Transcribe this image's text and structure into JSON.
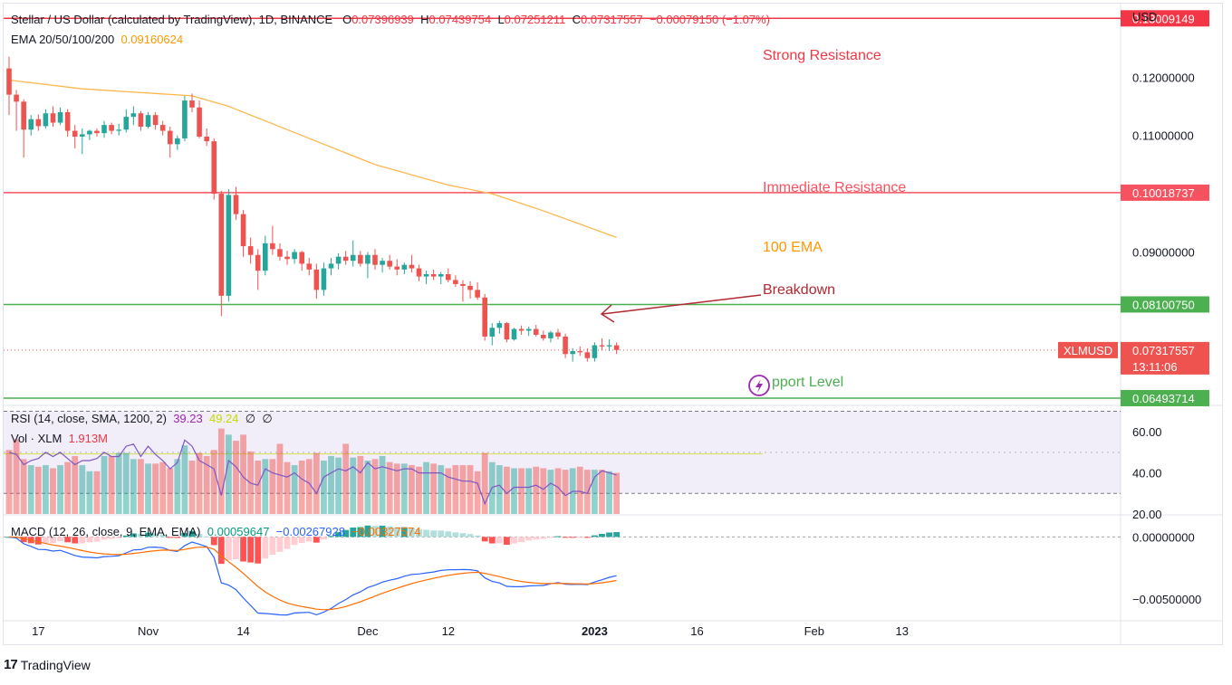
{
  "header": {
    "symbol": "Stellar / US Dollar (calculated by TradingView), 1D, BINANCE",
    "o_label": "O",
    "o_value": "0.07396939",
    "h_label": "H",
    "h_value": "0.07439754",
    "l_label": "L",
    "l_value": "0.07251211",
    "c_label": "C",
    "c_value": "0.07317557",
    "change": "−0.00079150 (−1.07%)",
    "ema_label": "EMA 20/50/100/200",
    "ema_value": "0.09160624"
  },
  "rsi_header": {
    "label": "RSI (14, close, SMA, 1200, 2)",
    "value": "39.23",
    "ma_value": "49.24",
    "extra1": "∅",
    "extra2": "∅"
  },
  "vol_header": {
    "label": "Vol · XLM",
    "value": "1.913M"
  },
  "macd_header": {
    "label": "MACD (12, 26, close, 9, EMA, EMA)",
    "hist": "0.00059647",
    "macd": "−0.00267928",
    "signal": "−0.00327574"
  },
  "currency": "USD",
  "footer": {
    "logo": "17",
    "brand": "TradingView"
  },
  "colors": {
    "up": "#26a69a",
    "down": "#ef5350",
    "ema": "#ffb74d",
    "strong": "#f23645",
    "immediate": "#f7525f",
    "support": "#4caf50",
    "breakdown": "#b22833",
    "rsi": "#7e57c2",
    "macd": "#2962ff",
    "signal": "#ff6d00"
  },
  "annotations": {
    "strong_resistance": "Strong Resistance",
    "immediate_resistance": "Immediate Resistance",
    "ema100": "100 EMA",
    "breakdown": "Breakdown",
    "support": "pport Level"
  },
  "levels": {
    "strong": {
      "value": 0.13009149,
      "label": "0.13009149"
    },
    "immediate": {
      "value": 0.10018737,
      "label": "0.10018737"
    },
    "breakdown": {
      "value": 0.0810075,
      "label": "0.08100750"
    },
    "support": {
      "value": 0.06493714,
      "label": "0.06493714"
    },
    "last": {
      "value": 0.07317557,
      "label": "0.07317557",
      "symbol": "XLMUSD",
      "countdown": "13:11:06"
    }
  },
  "chart_data": {
    "type": "candlestick",
    "price_axis": {
      "min": 0.064,
      "max": 0.132,
      "ticks": [
        0.12,
        0.11,
        0.09
      ],
      "tick_labels": [
        "0.12000000",
        "0.11000000",
        "0.09000000"
      ]
    },
    "rsi_axis": {
      "min": 20,
      "max": 72,
      "ticks": [
        60,
        40,
        20
      ],
      "tick_labels": [
        "60.00",
        "40.00",
        "20.00"
      ],
      "upper_band": 70,
      "lower_band": 30,
      "mid": 50
    },
    "macd_axis": {
      "min": -0.0066,
      "max": 0.0017,
      "ticks": [
        0,
        -0.005
      ],
      "tick_labels": [
        "0.00000000",
        "−0.00500000"
      ]
    },
    "x_labels": [
      {
        "label": "17",
        "day": 4
      },
      {
        "label": "Nov",
        "day": 19
      },
      {
        "label": "14",
        "day": 32
      },
      {
        "label": "Dec",
        "day": 49
      },
      {
        "label": "12",
        "day": 60
      },
      {
        "label": "2023",
        "day": 80,
        "bold": true
      },
      {
        "label": "16",
        "day": 94
      },
      {
        "label": "Feb",
        "day": 110
      },
      {
        "label": "13",
        "day": 122
      }
    ],
    "day_count": 84,
    "ohlc": [
      [
        0.1215,
        0.1235,
        0.1135,
        0.117
      ],
      [
        0.117,
        0.1178,
        0.1108,
        0.1158
      ],
      [
        0.1158,
        0.1162,
        0.1062,
        0.111
      ],
      [
        0.111,
        0.1135,
        0.11,
        0.1128
      ],
      [
        0.1128,
        0.1136,
        0.1108,
        0.1116
      ],
      [
        0.1116,
        0.1145,
        0.1112,
        0.1138
      ],
      [
        0.1138,
        0.115,
        0.1115,
        0.1122
      ],
      [
        0.1122,
        0.1148,
        0.1118,
        0.114
      ],
      [
        0.114,
        0.1145,
        0.1098,
        0.1108
      ],
      [
        0.1108,
        0.1118,
        0.1078,
        0.1098
      ],
      [
        0.1098,
        0.1112,
        0.1068,
        0.1102
      ],
      [
        0.1102,
        0.111,
        0.1092,
        0.1108
      ],
      [
        0.1108,
        0.1112,
        0.1098,
        0.1104
      ],
      [
        0.1104,
        0.1125,
        0.1096,
        0.1118
      ],
      [
        0.1118,
        0.1122,
        0.1102,
        0.1108
      ],
      [
        0.1108,
        0.112,
        0.11,
        0.111
      ],
      [
        0.111,
        0.1145,
        0.1105,
        0.1132
      ],
      [
        0.1132,
        0.115,
        0.1118,
        0.1138
      ],
      [
        0.1138,
        0.1142,
        0.1108,
        0.1115
      ],
      [
        0.1115,
        0.114,
        0.1112,
        0.1135
      ],
      [
        0.1135,
        0.114,
        0.111,
        0.1118
      ],
      [
        0.1118,
        0.1125,
        0.11,
        0.1108
      ],
      [
        0.1108,
        0.1115,
        0.1062,
        0.1085
      ],
      [
        0.1085,
        0.11,
        0.1075,
        0.1095
      ],
      [
        0.1095,
        0.1168,
        0.109,
        0.116
      ],
      [
        0.116,
        0.1172,
        0.114,
        0.1148
      ],
      [
        0.1148,
        0.116,
        0.1095,
        0.1098
      ],
      [
        0.1098,
        0.1112,
        0.1082,
        0.109
      ],
      [
        0.109,
        0.1095,
        0.099,
        0.1
      ],
      [
        0.1,
        0.1005,
        0.079,
        0.0825
      ],
      [
        0.0825,
        0.1008,
        0.0815,
        0.0998
      ],
      [
        0.0998,
        0.1012,
        0.0955,
        0.0965
      ],
      [
        0.0965,
        0.0972,
        0.0892,
        0.091
      ],
      [
        0.091,
        0.0925,
        0.088,
        0.0895
      ],
      [
        0.0895,
        0.0905,
        0.0835,
        0.0868
      ],
      [
        0.0868,
        0.0928,
        0.086,
        0.0915
      ],
      [
        0.0915,
        0.0945,
        0.0895,
        0.0905
      ],
      [
        0.0905,
        0.0915,
        0.0885,
        0.0892
      ],
      [
        0.0892,
        0.0902,
        0.0878,
        0.0888
      ],
      [
        0.0888,
        0.0905,
        0.088,
        0.09
      ],
      [
        0.09,
        0.0902,
        0.0868,
        0.088
      ],
      [
        0.088,
        0.089,
        0.086,
        0.087
      ],
      [
        0.087,
        0.088,
        0.082,
        0.0835
      ],
      [
        0.0835,
        0.0882,
        0.0825,
        0.0872
      ],
      [
        0.0872,
        0.089,
        0.086,
        0.088
      ],
      [
        0.088,
        0.0898,
        0.087,
        0.0892
      ],
      [
        0.0892,
        0.0902,
        0.0878,
        0.0885
      ],
      [
        0.0885,
        0.092,
        0.0875,
        0.0895
      ],
      [
        0.0895,
        0.0902,
        0.0875,
        0.088
      ],
      [
        0.088,
        0.09,
        0.0855,
        0.0895
      ],
      [
        0.0895,
        0.0905,
        0.087,
        0.0878
      ],
      [
        0.0878,
        0.089,
        0.0865,
        0.0885
      ],
      [
        0.0885,
        0.0895,
        0.087,
        0.0875
      ],
      [
        0.0875,
        0.0888,
        0.086,
        0.087
      ],
      [
        0.087,
        0.0882,
        0.0862,
        0.0878
      ],
      [
        0.0878,
        0.0895,
        0.0865,
        0.0872
      ],
      [
        0.0872,
        0.0878,
        0.085,
        0.0858
      ],
      [
        0.0858,
        0.0868,
        0.0845,
        0.0862
      ],
      [
        0.0862,
        0.087,
        0.0852,
        0.0858
      ],
      [
        0.0858,
        0.0866,
        0.0845,
        0.0862
      ],
      [
        0.0862,
        0.0872,
        0.0848,
        0.0852
      ],
      [
        0.0852,
        0.086,
        0.084,
        0.0845
      ],
      [
        0.0845,
        0.0852,
        0.0815,
        0.0842
      ],
      [
        0.0842,
        0.085,
        0.082,
        0.0835
      ],
      [
        0.0835,
        0.0848,
        0.0818,
        0.0822
      ],
      [
        0.0822,
        0.0828,
        0.0748,
        0.0755
      ],
      [
        0.0755,
        0.0778,
        0.074,
        0.077
      ],
      [
        0.077,
        0.0782,
        0.076,
        0.0778
      ],
      [
        0.0778,
        0.078,
        0.0745,
        0.075
      ],
      [
        0.075,
        0.077,
        0.0748,
        0.0768
      ],
      [
        0.0768,
        0.0774,
        0.0758,
        0.0765
      ],
      [
        0.0765,
        0.0772,
        0.0756,
        0.0768
      ],
      [
        0.0768,
        0.0775,
        0.0755,
        0.0758
      ],
      [
        0.0758,
        0.0765,
        0.0748,
        0.0752
      ],
      [
        0.0752,
        0.0765,
        0.0745,
        0.0762
      ],
      [
        0.0762,
        0.0768,
        0.075,
        0.0755
      ],
      [
        0.0755,
        0.076,
        0.0718,
        0.0725
      ],
      [
        0.0725,
        0.0735,
        0.0712,
        0.073
      ],
      [
        0.073,
        0.0738,
        0.0722,
        0.0728
      ],
      [
        0.0728,
        0.0735,
        0.0712,
        0.0718
      ],
      [
        0.0718,
        0.0745,
        0.0712,
        0.074
      ],
      [
        0.074,
        0.0752,
        0.0732,
        0.0738
      ],
      [
        0.0738,
        0.075,
        0.073,
        0.074
      ],
      [
        0.074,
        0.0745,
        0.0725,
        0.0732
      ]
    ],
    "ema100": {
      "start_day": 0,
      "start": 0.1195,
      "points": [
        [
          0,
          0.1195
        ],
        [
          10,
          0.118
        ],
        [
          20,
          0.1172
        ],
        [
          25,
          0.1168
        ],
        [
          30,
          0.115
        ],
        [
          40,
          0.11
        ],
        [
          50,
          0.105
        ],
        [
          60,
          0.1015
        ],
        [
          66,
          0.1
        ],
        [
          72,
          0.0975
        ],
        [
          78,
          0.0948
        ],
        [
          83,
          0.0925
        ]
      ]
    },
    "volume_scale_max": 70,
    "volume": [
      42,
      49,
      36,
      32,
      31,
      32,
      30,
      32,
      34,
      38,
      32,
      28,
      28,
      38,
      38,
      40,
      40,
      36,
      36,
      33,
      33,
      34,
      30,
      36,
      45,
      35,
      40,
      38,
      42,
      56,
      52,
      48,
      52,
      41,
      35,
      36,
      36,
      46,
      34,
      32,
      35,
      36,
      40,
      35,
      38,
      37,
      46,
      37,
      38,
      35,
      36,
      38,
      34,
      33,
      33,
      32,
      31,
      34,
      33,
      32,
      30,
      32,
      32,
      32,
      28,
      40,
      34,
      32,
      31,
      30,
      30,
      30,
      31,
      30,
      29,
      30,
      29,
      30,
      31,
      29,
      29,
      29,
      28,
      27
    ],
    "rsi": [
      50,
      49,
      44,
      46,
      47,
      50,
      48,
      50,
      47,
      44,
      46,
      46,
      47,
      50,
      48,
      48,
      53,
      54,
      48,
      53,
      49,
      46,
      42,
      45,
      56,
      53,
      46,
      44,
      42,
      29,
      46,
      43,
      38,
      35,
      34,
      42,
      40,
      39,
      38,
      40,
      37,
      35,
      30,
      38,
      40,
      42,
      41,
      43,
      40,
      45,
      42,
      43,
      42,
      41,
      42,
      42,
      40,
      40,
      40,
      40,
      38,
      37,
      36,
      36,
      35,
      25,
      33,
      34,
      30,
      33,
      33,
      33,
      34,
      32,
      35,
      33,
      29,
      31,
      31,
      30,
      38,
      41,
      40,
      39
    ]
  }
}
